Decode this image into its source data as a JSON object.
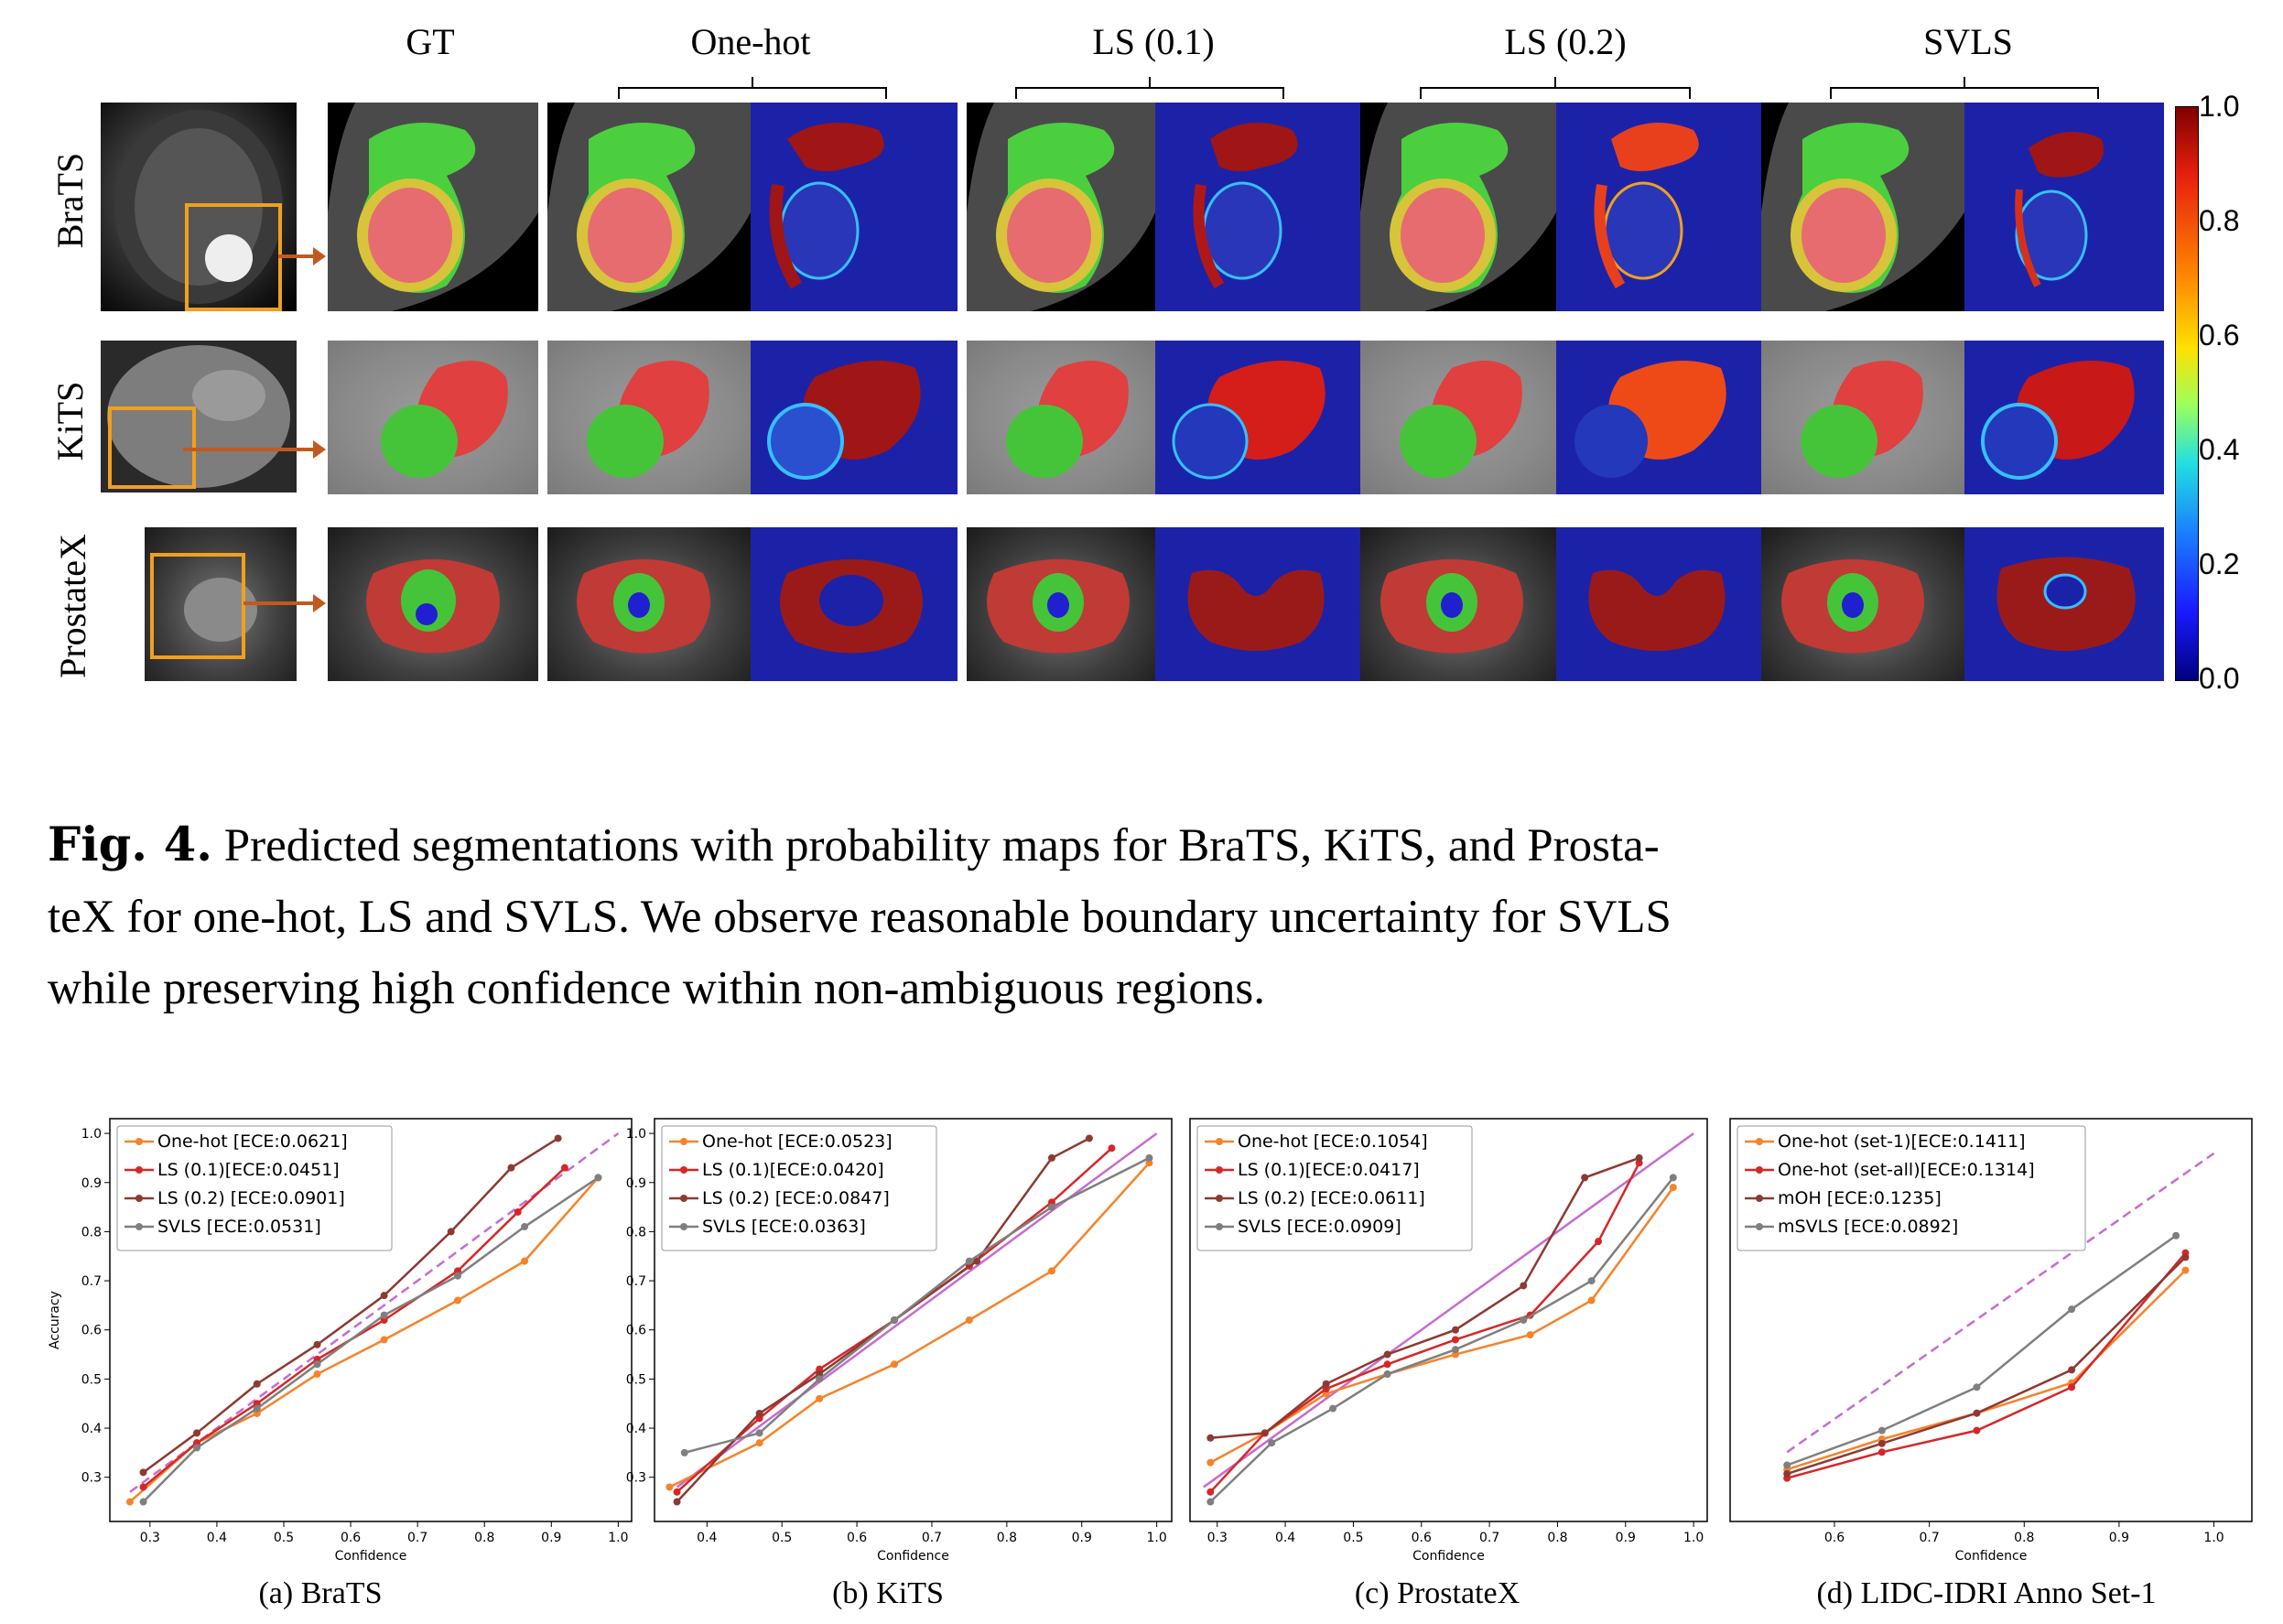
{
  "figure": {
    "column_titles": [
      "GT",
      "One-hot",
      "LS (0.1)",
      "LS (0.2)",
      "SVLS"
    ],
    "row_labels": [
      "BraTS",
      "KiTS",
      "ProstateX"
    ],
    "colorbar_ticks": [
      "1.0",
      "0.8",
      "0.6",
      "0.4",
      "0.2",
      "0.0"
    ],
    "caption_label": "Fig. 4.",
    "caption_lines": [
      "Predicted segmentations with probability maps for BraTS, KiTS, and Prosta-",
      "teX for one-hot, LS and SVLS. We observe reasonable boundary uncertainty for SVLS",
      "while preserving high confidence within non-ambiguous regions."
    ]
  },
  "colors": {
    "one_hot": "#f5832a",
    "ls01": "#d62728",
    "ls02": "#8c3a32",
    "svls": "#7f7f7f",
    "diagonal": "#c76bd0",
    "seg_red": "#e0403f",
    "seg_green": "#45c43a",
    "prob_blue": "#1c22a8",
    "prob_red": "#a01515"
  },
  "chart_data": [
    {
      "type": "line",
      "caption": "(a) BraTS",
      "xlabel": "Confidence",
      "ylabel": "Accuracy",
      "xlim": [
        0.24,
        1.02
      ],
      "ylim": [
        0.21,
        1.03
      ],
      "xticks": [
        "0.3",
        "0.4",
        "0.5",
        "0.6",
        "0.7",
        "0.8",
        "0.9",
        "1.0"
      ],
      "yticks": [
        "0.3",
        "0.4",
        "0.5",
        "0.6",
        "0.7",
        "0.8",
        "0.9",
        "1.0"
      ],
      "legend_position": "top-left",
      "diagonal": {
        "from": [
          0.27,
          0.27
        ],
        "to": [
          1.0,
          1.0
        ],
        "dashed": true
      },
      "series": [
        {
          "name": "One-hot [ECE:0.0621]",
          "color_key": "one_hot",
          "points": [
            [
              0.27,
              0.25
            ],
            [
              0.37,
              0.37
            ],
            [
              0.46,
              0.43
            ],
            [
              0.55,
              0.51
            ],
            [
              0.65,
              0.58
            ],
            [
              0.76,
              0.66
            ],
            [
              0.86,
              0.74
            ],
            [
              0.97,
              0.91
            ]
          ]
        },
        {
          "name": "LS (0.1)[ECE:0.0451]",
          "color_key": "ls01",
          "points": [
            [
              0.29,
              0.28
            ],
            [
              0.37,
              0.37
            ],
            [
              0.46,
              0.45
            ],
            [
              0.55,
              0.54
            ],
            [
              0.65,
              0.62
            ],
            [
              0.76,
              0.72
            ],
            [
              0.85,
              0.84
            ],
            [
              0.92,
              0.93
            ]
          ]
        },
        {
          "name": "LS (0.2) [ECE:0.0901]",
          "color_key": "ls02",
          "points": [
            [
              0.29,
              0.31
            ],
            [
              0.37,
              0.39
            ],
            [
              0.46,
              0.49
            ],
            [
              0.55,
              0.57
            ],
            [
              0.65,
              0.67
            ],
            [
              0.75,
              0.8
            ],
            [
              0.84,
              0.93
            ],
            [
              0.91,
              0.99
            ]
          ]
        },
        {
          "name": "SVLS [ECE:0.0531]",
          "color_key": "svls",
          "points": [
            [
              0.29,
              0.25
            ],
            [
              0.37,
              0.36
            ],
            [
              0.46,
              0.44
            ],
            [
              0.55,
              0.53
            ],
            [
              0.65,
              0.63
            ],
            [
              0.76,
              0.71
            ],
            [
              0.86,
              0.81
            ],
            [
              0.97,
              0.91
            ]
          ]
        }
      ]
    },
    {
      "type": "line",
      "caption": "(b) KiTS",
      "xlabel": "Confidence",
      "ylabel": "",
      "xlim": [
        0.33,
        1.02
      ],
      "ylim": [
        0.21,
        1.03
      ],
      "xticks": [
        "0.4",
        "0.5",
        "0.6",
        "0.7",
        "0.8",
        "0.9",
        "1.0"
      ],
      "yticks": [
        "0.3",
        "0.4",
        "0.5",
        "0.6",
        "0.7",
        "0.8",
        "0.9",
        "1.0"
      ],
      "legend_position": "top-left",
      "diagonal": {
        "from": [
          0.36,
          0.28
        ],
        "to": [
          1.0,
          1.0
        ],
        "dashed": false
      },
      "series": [
        {
          "name": "One-hot [ECE:0.0523]",
          "color_key": "one_hot",
          "points": [
            [
              0.35,
              0.28
            ],
            [
              0.47,
              0.37
            ],
            [
              0.55,
              0.46
            ],
            [
              0.65,
              0.53
            ],
            [
              0.75,
              0.62
            ],
            [
              0.86,
              0.72
            ],
            [
              0.99,
              0.94
            ]
          ]
        },
        {
          "name": "LS (0.1)[ECE:0.0420]",
          "color_key": "ls01",
          "points": [
            [
              0.36,
              0.27
            ],
            [
              0.47,
              0.42
            ],
            [
              0.55,
              0.52
            ],
            [
              0.65,
              0.62
            ],
            [
              0.75,
              0.73
            ],
            [
              0.86,
              0.86
            ],
            [
              0.94,
              0.97
            ]
          ]
        },
        {
          "name": "LS (0.2) [ECE:0.0847]",
          "color_key": "ls02",
          "points": [
            [
              0.36,
              0.25
            ],
            [
              0.47,
              0.43
            ],
            [
              0.55,
              0.51
            ],
            [
              0.65,
              0.62
            ],
            [
              0.76,
              0.74
            ],
            [
              0.86,
              0.95
            ],
            [
              0.91,
              0.99
            ]
          ]
        },
        {
          "name": "SVLS [ECE:0.0363]",
          "color_key": "svls",
          "points": [
            [
              0.37,
              0.35
            ],
            [
              0.47,
              0.39
            ],
            [
              0.55,
              0.5
            ],
            [
              0.65,
              0.62
            ],
            [
              0.75,
              0.74
            ],
            [
              0.86,
              0.85
            ],
            [
              0.99,
              0.95
            ]
          ]
        }
      ]
    },
    {
      "type": "line",
      "caption": "(c) ProstateX",
      "xlabel": "Confidence",
      "ylabel": "",
      "xlim": [
        0.26,
        1.02
      ],
      "ylim": [
        0.21,
        1.03
      ],
      "xticks": [
        "0.3",
        "0.4",
        "0.5",
        "0.6",
        "0.7",
        "0.8",
        "0.9",
        "1.0"
      ],
      "yticks": [],
      "legend_position": "top-left",
      "diagonal": {
        "from": [
          0.28,
          0.28
        ],
        "to": [
          1.0,
          1.0
        ],
        "dashed": false
      },
      "series": [
        {
          "name": "One-hot [ECE:0.1054]",
          "color_key": "one_hot",
          "points": [
            [
              0.29,
              0.33
            ],
            [
              0.37,
              0.39
            ],
            [
              0.46,
              0.47
            ],
            [
              0.55,
              0.51
            ],
            [
              0.65,
              0.55
            ],
            [
              0.76,
              0.59
            ],
            [
              0.85,
              0.66
            ],
            [
              0.97,
              0.89
            ]
          ]
        },
        {
          "name": "LS (0.1)[ECE:0.0417]",
          "color_key": "ls01",
          "points": [
            [
              0.29,
              0.27
            ],
            [
              0.37,
              0.39
            ],
            [
              0.46,
              0.48
            ],
            [
              0.55,
              0.53
            ],
            [
              0.65,
              0.58
            ],
            [
              0.76,
              0.63
            ],
            [
              0.86,
              0.78
            ],
            [
              0.92,
              0.94
            ]
          ]
        },
        {
          "name": "LS (0.2) [ECE:0.0611]",
          "color_key": "ls02",
          "points": [
            [
              0.29,
              0.38
            ],
            [
              0.37,
              0.39
            ],
            [
              0.46,
              0.49
            ],
            [
              0.55,
              0.55
            ],
            [
              0.65,
              0.6
            ],
            [
              0.75,
              0.69
            ],
            [
              0.84,
              0.91
            ],
            [
              0.92,
              0.95
            ]
          ]
        },
        {
          "name": "SVLS [ECE:0.0909]",
          "color_key": "svls",
          "points": [
            [
              0.29,
              0.25
            ],
            [
              0.38,
              0.37
            ],
            [
              0.47,
              0.44
            ],
            [
              0.55,
              0.51
            ],
            [
              0.65,
              0.56
            ],
            [
              0.75,
              0.62
            ],
            [
              0.85,
              0.7
            ],
            [
              0.97,
              0.91
            ]
          ]
        }
      ]
    },
    {
      "type": "line",
      "caption": "(d) LIDC-IDRI Anno Set-1",
      "xlabel": "Confidence",
      "ylabel": "",
      "xlim": [
        0.49,
        1.04
      ],
      "ylim": [
        0.15,
        1.08
      ],
      "xticks": [
        "0.6",
        "0.7",
        "0.8",
        "0.9",
        "1.0"
      ],
      "yticks": [],
      "legend_position": "top-left",
      "diagonal": {
        "from": [
          0.55,
          0.31
        ],
        "to": [
          1.0,
          1.0
        ],
        "dashed": true
      },
      "series": [
        {
          "name": "One-hot (set-1)[ECE:0.1411]",
          "color_key": "one_hot",
          "points": [
            [
              0.55,
              0.27
            ],
            [
              0.65,
              0.34
            ],
            [
              0.75,
              0.4
            ],
            [
              0.85,
              0.47
            ],
            [
              0.97,
              0.73
            ]
          ]
        },
        {
          "name": "One-hot (set-all)[ECE:0.1314]",
          "color_key": "ls01",
          "points": [
            [
              0.55,
              0.25
            ],
            [
              0.65,
              0.31
            ],
            [
              0.75,
              0.36
            ],
            [
              0.85,
              0.46
            ],
            [
              0.97,
              0.77
            ]
          ]
        },
        {
          "name": "mOH [ECE:0.1235]",
          "color_key": "ls02",
          "points": [
            [
              0.55,
              0.26
            ],
            [
              0.65,
              0.33
            ],
            [
              0.75,
              0.4
            ],
            [
              0.85,
              0.5
            ],
            [
              0.97,
              0.76
            ]
          ]
        },
        {
          "name": "mSVLS [ECE:0.0892]",
          "color_key": "svls",
          "points": [
            [
              0.55,
              0.28
            ],
            [
              0.65,
              0.36
            ],
            [
              0.75,
              0.46
            ],
            [
              0.85,
              0.64
            ],
            [
              0.96,
              0.81
            ]
          ]
        }
      ]
    }
  ]
}
